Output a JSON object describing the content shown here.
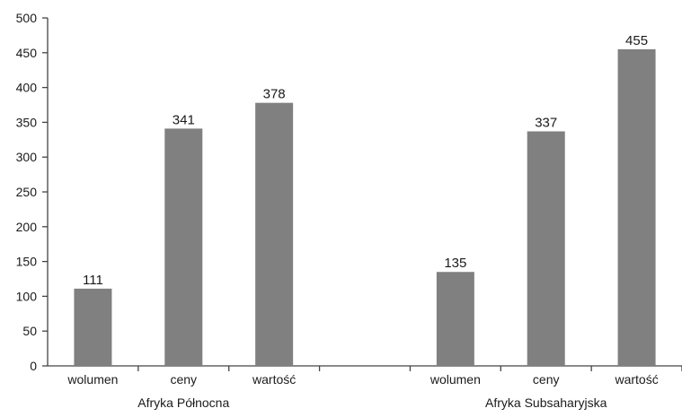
{
  "chart_data": {
    "type": "bar",
    "title": "",
    "xlabel": "",
    "ylabel": "",
    "ylim": [
      0,
      500
    ],
    "yticks": [
      0,
      50,
      100,
      150,
      200,
      250,
      300,
      350,
      400,
      450,
      500
    ],
    "grid": false,
    "legend": "none",
    "bar_color": "#808080",
    "groups": [
      {
        "name": "Afryka Północna",
        "categories": [
          "wolumen",
          "ceny",
          "wartość"
        ],
        "values": [
          111,
          341,
          378
        ]
      },
      {
        "name": "Afryka Subsaharyjska",
        "categories": [
          "wolumen",
          "ceny",
          "wartość"
        ],
        "values": [
          135,
          337,
          455
        ]
      }
    ]
  }
}
